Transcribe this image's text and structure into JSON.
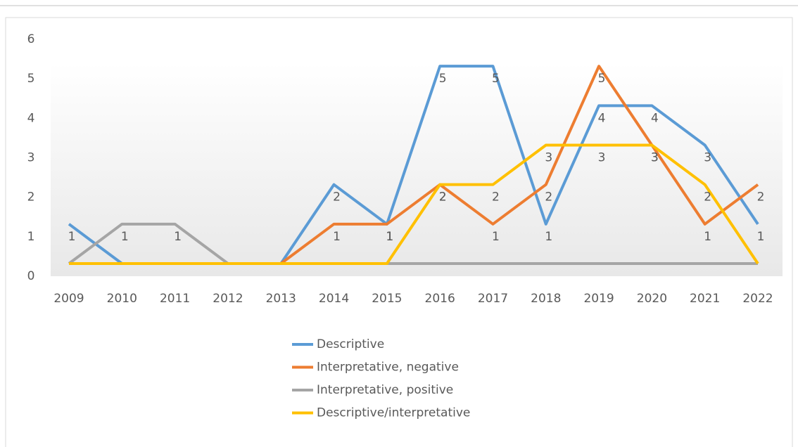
{
  "chart_data": {
    "type": "line",
    "categories": [
      "2009",
      "2010",
      "2011",
      "2012",
      "2013",
      "2014",
      "2015",
      "2016",
      "2017",
      "2018",
      "2019",
      "2020",
      "2021",
      "2022"
    ],
    "series": [
      {
        "name": "Descriptive",
        "color": "#5b9bd5",
        "values": [
          1,
          0,
          0,
          0,
          0,
          2,
          1,
          5,
          5,
          1,
          4,
          4,
          3,
          1
        ]
      },
      {
        "name": "Interpretative, negative",
        "color": "#ed7d31",
        "values": [
          0,
          0,
          0,
          0,
          0,
          1,
          1,
          2,
          1,
          2,
          5,
          3,
          1,
          2
        ]
      },
      {
        "name": "Interpretative, positive",
        "color": "#a5a5a5",
        "values": [
          0,
          1,
          1,
          0,
          0,
          0,
          0,
          0,
          0,
          0,
          0,
          0,
          0,
          0
        ]
      },
      {
        "name": "Descriptive/interpretative",
        "color": "#ffc000",
        "values": [
          0,
          0,
          0,
          0,
          0,
          0,
          0,
          2,
          2,
          3,
          3,
          3,
          2,
          0
        ]
      }
    ],
    "ylim": [
      0,
      6
    ],
    "yticks": [
      0,
      1,
      2,
      3,
      4,
      5,
      6
    ],
    "legend": "bottom"
  }
}
